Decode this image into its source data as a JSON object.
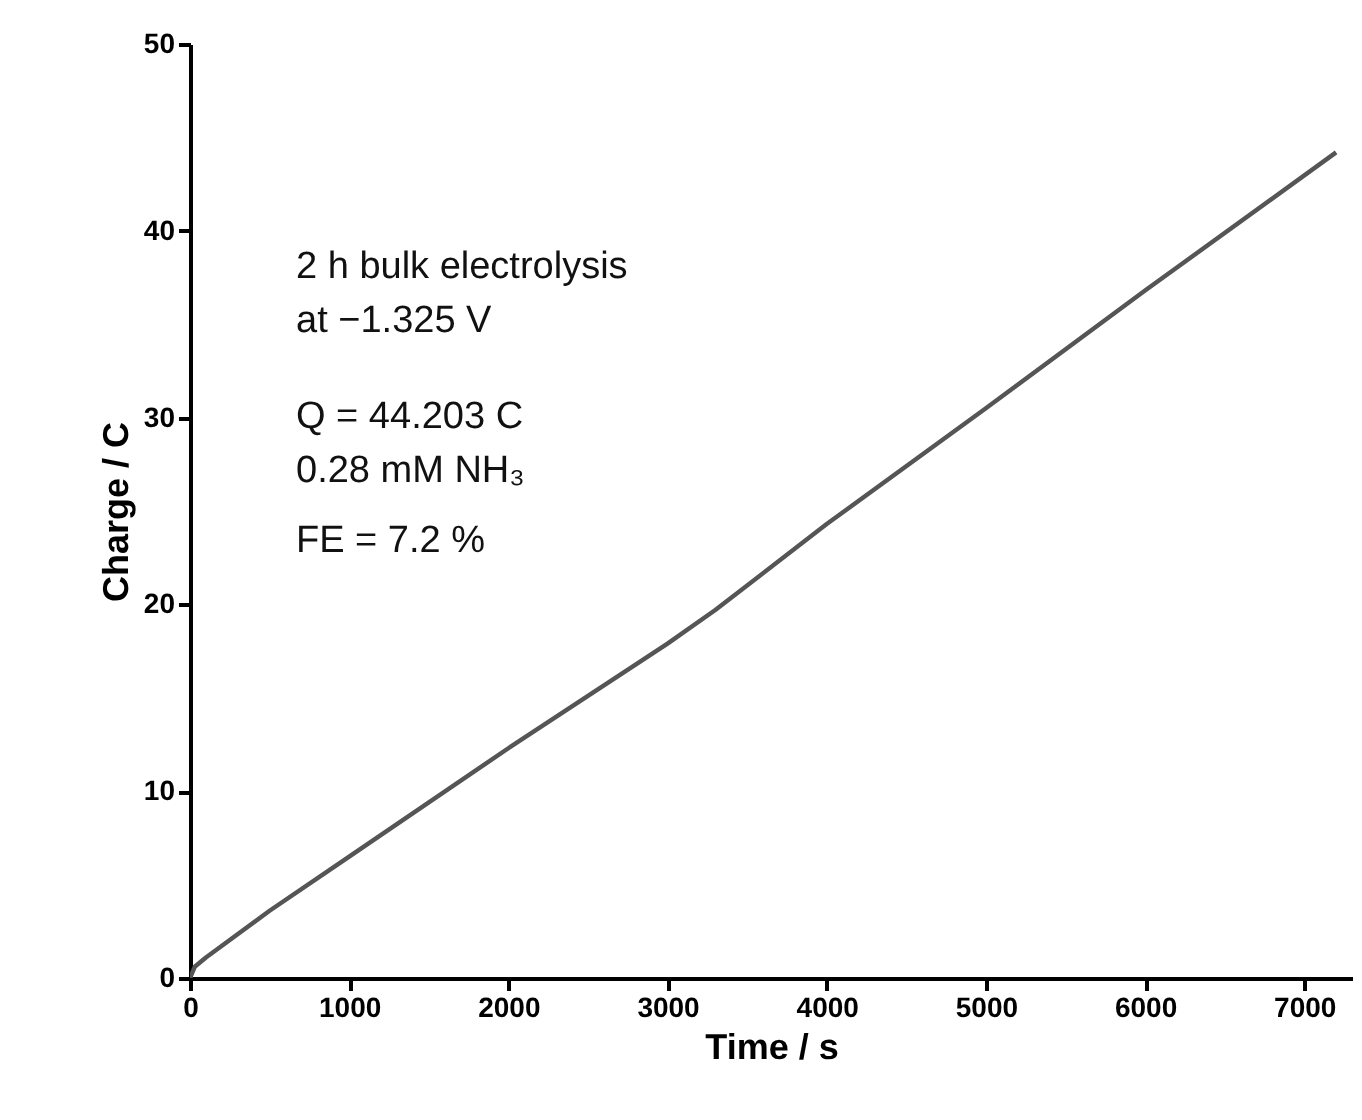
{
  "chart_data": {
    "type": "line",
    "xlabel": "Time / s",
    "ylabel": "Charge / C",
    "x": [
      0,
      30,
      100,
      500,
      1000,
      2000,
      3000,
      3300,
      4000,
      5000,
      6000,
      7200
    ],
    "series": [
      {
        "color": "#555555",
        "values": [
          0,
          0.6,
          1.1,
          3.6,
          6.5,
          12.3,
          17.9,
          19.7,
          24.3,
          30.5,
          36.8,
          44.2
        ]
      }
    ],
    "xlim": [
      0,
      7300
    ],
    "xticks": [
      0,
      1000,
      2000,
      3000,
      4000,
      5000,
      6000,
      7000
    ],
    "ylim": [
      0,
      50
    ],
    "yticks": [
      0,
      10,
      20,
      30,
      40,
      50
    ],
    "grid": false,
    "annotations": [
      "2 h bulk electrolysis",
      "at −1.325 V",
      "Q = 44.203 C",
      "0.28 mM NH₃",
      "FE = 7.2 %"
    ]
  }
}
